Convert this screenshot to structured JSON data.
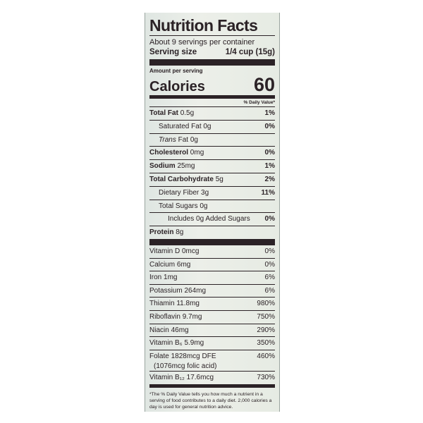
{
  "title": "Nutrition Facts",
  "servings": "About 9 servings per container",
  "serving_size": {
    "label": "Serving size",
    "value": "1/4 cup (15g)"
  },
  "amount_per_serving": "Amount per serving",
  "calories": {
    "label": "Calories",
    "value": 60
  },
  "dv_header": "% Daily Value*",
  "nutrients": [
    {
      "name": "Total Fat",
      "amount": "0.5g",
      "dv": "1%",
      "bold": true
    },
    {
      "name": "Saturated Fat",
      "amount": "0g",
      "dv": "0%",
      "indent": 1
    },
    {
      "italic": "Trans",
      "name": "Fat",
      "amount": "0g",
      "indent": 1
    },
    {
      "name": "Cholesterol",
      "amount": "0mg",
      "dv": "0%",
      "bold": true
    },
    {
      "name": "Sodium",
      "amount": "25mg",
      "dv": "1%",
      "bold": true
    },
    {
      "name": "Total Carbohydrate",
      "amount": "5g",
      "dv": "2%",
      "bold": true
    },
    {
      "name": "Dietary Fiber",
      "amount": "3g",
      "dv": "11%",
      "indent": 1
    },
    {
      "name": "Total Sugars",
      "amount": "0g",
      "indent": 1
    },
    {
      "name": "Includes 0g Added Sugars",
      "dv": "0%",
      "indent": 2
    },
    {
      "name": "Protein",
      "amount": "8g",
      "bold": true
    }
  ],
  "vitamins": [
    {
      "name": "Vitamin D",
      "amount": "0mcg",
      "dv": "0%"
    },
    {
      "name": "Calcium",
      "amount": "6mg",
      "dv": "0%"
    },
    {
      "name": "Iron",
      "amount": "1mg",
      "dv": "6%"
    },
    {
      "name": "Potassium",
      "amount": "264mg",
      "dv": "6%"
    },
    {
      "name": "Thiamin",
      "amount": "11.8mg",
      "dv": "980%"
    },
    {
      "name": "Riboflavin",
      "amount": "9.7mg",
      "dv": "750%"
    },
    {
      "name": "Niacin",
      "amount": "46mg",
      "dv": "290%"
    },
    {
      "name": "Vitamin B₆",
      "amount": "5.9mg",
      "dv": "350%"
    },
    {
      "name": "Folate",
      "amount": "1828mcg DFE",
      "dv": "460%",
      "note": "(1076mcg folic acid)"
    },
    {
      "name": "Vitamin B₁₂",
      "amount": "17.6mcg",
      "dv": "730%"
    }
  ],
  "footnote": "*The % Daily Value tells you how much a nutrient in a serving of food contributes to a daily diet. 2,000 calories a day is used for general nutrition advice."
}
